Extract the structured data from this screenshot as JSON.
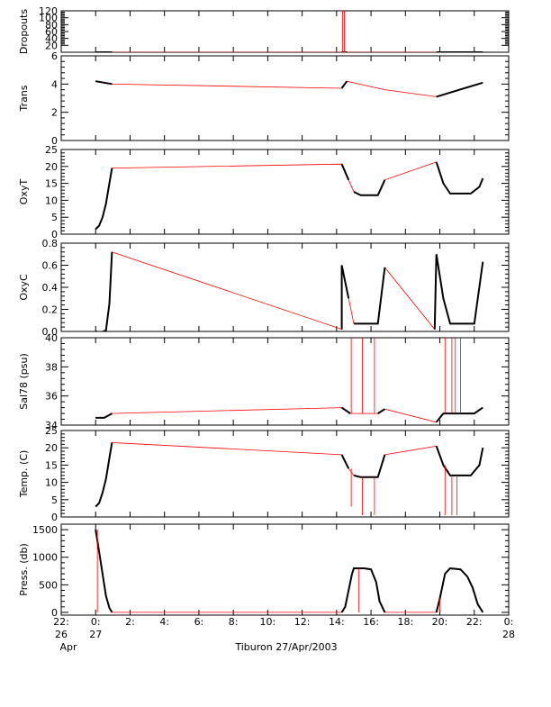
{
  "figure": {
    "xlabel": "Tiburon 27/Apr/2003",
    "x_ticks": [
      {
        "label1": "22:",
        "label2": "26",
        "label3": "Apr"
      },
      {
        "label1": "0:",
        "label2": "27",
        "label3": ""
      },
      {
        "label1": "2:",
        "label2": "",
        "label3": ""
      },
      {
        "label1": "4:",
        "label2": "",
        "label3": ""
      },
      {
        "label1": "6:",
        "label2": "",
        "label3": ""
      },
      {
        "label1": "8:",
        "label2": "",
        "label3": ""
      },
      {
        "label1": "10:",
        "label2": "",
        "label3": ""
      },
      {
        "label1": "12:",
        "label2": "",
        "label3": ""
      },
      {
        "label1": "14:",
        "label2": "",
        "label3": ""
      },
      {
        "label1": "16:",
        "label2": "",
        "label3": ""
      },
      {
        "label1": "18:",
        "label2": "",
        "label3": ""
      },
      {
        "label1": "20:",
        "label2": "",
        "label3": ""
      },
      {
        "label1": "22:",
        "label2": "",
        "label3": ""
      },
      {
        "label1": "0:",
        "label2": "28",
        "label3": ""
      }
    ],
    "x_tick_hours": [
      -2,
      0,
      2,
      4,
      6,
      8,
      10,
      12,
      14,
      16,
      18,
      20,
      22,
      24
    ],
    "xlim_hours": [
      -2,
      24
    ]
  },
  "colors": {
    "data": "#000000",
    "connector": "#ff0000"
  },
  "chart_data": [
    {
      "type": "line",
      "ylabel": "Dropouts",
      "yticks": [
        20,
        40,
        60,
        80,
        100,
        120
      ],
      "ytick_labels": [
        "20",
        "40",
        "60",
        "80",
        "100",
        "120"
      ],
      "ylim": [
        0,
        120
      ],
      "x": [
        0,
        0.95,
        14.3,
        14.6,
        16.8,
        19.8,
        22.5
      ],
      "y": [
        0,
        0,
        0,
        0,
        0,
        0,
        0
      ],
      "spikes": [
        {
          "x": 14.35,
          "y": 120
        },
        {
          "x": 14.45,
          "y": 120
        }
      ]
    },
    {
      "type": "line",
      "ylabel": "Trans",
      "yticks": [
        0,
        2,
        4,
        6
      ],
      "ytick_labels": [
        "0",
        "2",
        "4",
        "6"
      ],
      "ylim": [
        0,
        6
      ],
      "x": [
        0,
        0.95,
        14.3,
        14.6,
        16.8,
        19.8,
        22.5
      ],
      "y": [
        4.2,
        4.0,
        3.7,
        4.2,
        3.6,
        3.1,
        4.1
      ]
    },
    {
      "type": "line",
      "ylabel": "OxyT",
      "yticks": [
        0,
        5,
        10,
        15,
        20,
        25
      ],
      "ytick_labels": [
        "0",
        "5",
        "10",
        "15",
        "20",
        "25"
      ],
      "ylim": [
        0,
        25
      ],
      "x": [
        0,
        0.2,
        0.4,
        0.6,
        0.8,
        0.95,
        14.3,
        14.7,
        15.0,
        15.4,
        16.4,
        16.8,
        19.8,
        20.2,
        20.6,
        21.8,
        22.3,
        22.5
      ],
      "y": [
        1.5,
        2.5,
        5,
        9,
        15,
        19.5,
        20.7,
        16,
        12.5,
        11.5,
        11.5,
        16,
        21.3,
        15,
        12,
        12,
        14,
        16.5
      ]
    },
    {
      "type": "line",
      "ylabel": "OxyC",
      "yticks": [
        0.0,
        0.2,
        0.4,
        0.6,
        0.8
      ],
      "ytick_labels": [
        "0.0",
        "0.2",
        "0.4",
        "0.6",
        "0.8"
      ],
      "ylim": [
        0,
        0.8
      ],
      "x": [
        0,
        0.3,
        0.6,
        0.8,
        0.95,
        14.3,
        14.3,
        14.7,
        15.0,
        16.4,
        16.8,
        19.7,
        19.8,
        20.2,
        20.6,
        22.0,
        22.5
      ],
      "y": [
        0.0,
        -0.01,
        0.01,
        0.25,
        0.72,
        0.02,
        0.6,
        0.3,
        0.07,
        0.07,
        0.58,
        0.02,
        0.7,
        0.3,
        0.07,
        0.07,
        0.63
      ]
    },
    {
      "type": "line",
      "ylabel": "Sal78 (psu)",
      "yticks": [
        34,
        36,
        38,
        40
      ],
      "ytick_labels": [
        "34",
        "36",
        "38",
        "40"
      ],
      "ylim": [
        34,
        40
      ],
      "x": [
        0,
        0.5,
        0.95,
        14.3,
        14.8,
        16.4,
        16.8,
        19.8,
        20.2,
        22.0,
        22.5
      ],
      "y": [
        34.5,
        34.5,
        34.8,
        35.2,
        34.8,
        34.8,
        35.1,
        34.2,
        34.8,
        34.8,
        35.2
      ],
      "spikes": [
        {
          "x": 14.85,
          "y": 40
        },
        {
          "x": 15.5,
          "y": 40
        },
        {
          "x": 16.2,
          "y": 40
        },
        {
          "x": 20.3,
          "y": 40
        },
        {
          "x": 20.7,
          "y": 40
        },
        {
          "x": 20.9,
          "y": 40
        },
        {
          "x": 21.2,
          "y": 40
        }
      ]
    },
    {
      "type": "line",
      "ylabel": "Temp. (C)",
      "yticks": [
        0,
        5,
        10,
        15,
        20,
        25
      ],
      "ytick_labels": [
        "0",
        "5",
        "10",
        "15",
        "20",
        "25"
      ],
      "ylim": [
        0,
        25
      ],
      "x": [
        0,
        0.2,
        0.4,
        0.6,
        0.8,
        0.95,
        14.3,
        14.7,
        15.0,
        15.4,
        16.4,
        16.8,
        19.8,
        20.2,
        20.6,
        21.8,
        22.3,
        22.5
      ],
      "y": [
        3,
        4,
        7,
        11,
        17,
        21.5,
        18,
        14,
        12,
        11.5,
        11.5,
        18,
        20.5,
        15,
        12,
        12,
        15,
        20
      ],
      "spikes": [
        {
          "x": 14.85,
          "y": 3
        },
        {
          "x": 15.5,
          "y": 0.5
        },
        {
          "x": 16.2,
          "y": 0.5
        },
        {
          "x": 20.3,
          "y": 0.5
        },
        {
          "x": 20.7,
          "y": 0.5
        },
        {
          "x": 21.0,
          "y": 0.5
        }
      ]
    },
    {
      "type": "line",
      "ylabel": "Press. (db)",
      "yticks": [
        0,
        500,
        1000,
        1500
      ],
      "ytick_labels": [
        "0",
        "500",
        "1000",
        "1500"
      ],
      "ylim": [
        -50,
        1600
      ],
      "x": [
        0,
        0.2,
        0.4,
        0.6,
        0.8,
        0.95,
        14.3,
        14.5,
        14.7,
        14.9,
        15.0,
        15.6,
        16.0,
        16.3,
        16.5,
        16.8,
        19.8,
        20.0,
        20.3,
        20.6,
        21.2,
        21.6,
        21.9,
        22.2,
        22.5
      ],
      "y": [
        1500,
        1100,
        700,
        300,
        80,
        0,
        0,
        100,
        400,
        700,
        800,
        800,
        780,
        550,
        200,
        0,
        0,
        250,
        700,
        800,
        780,
        650,
        450,
        150,
        0
      ],
      "spikes": [
        {
          "x": 0.1,
          "y": 0
        },
        {
          "x": 15.3,
          "y": 0
        },
        {
          "x": 20.0,
          "y": 0
        }
      ]
    }
  ]
}
